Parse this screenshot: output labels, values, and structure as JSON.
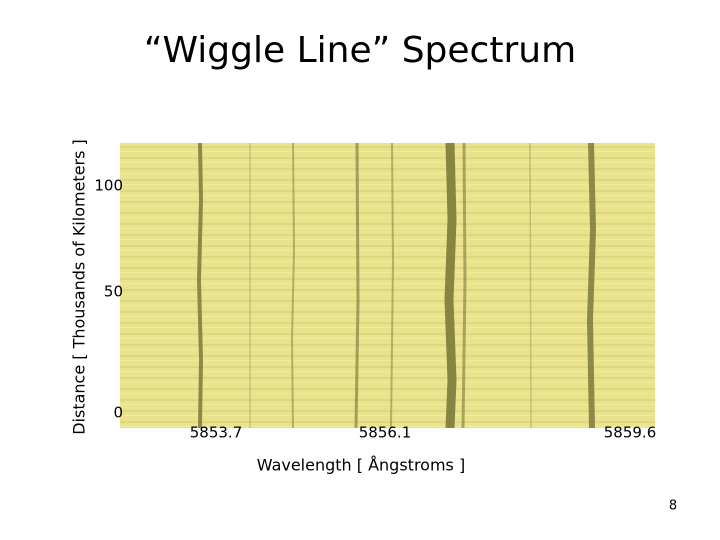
{
  "title": "“Wiggle Line” Spectrum",
  "figure": {
    "y_axis_label": "Distance [ Thousands of Kilometers ]",
    "y_tick_labels": [
      "100",
      "50",
      "0"
    ],
    "x_tick_labels": [
      "5853.7",
      "5856.1",
      "5859.6"
    ],
    "x_axis_label": "Wavelength [ Ångstroms ]"
  },
  "page_number": "8"
}
